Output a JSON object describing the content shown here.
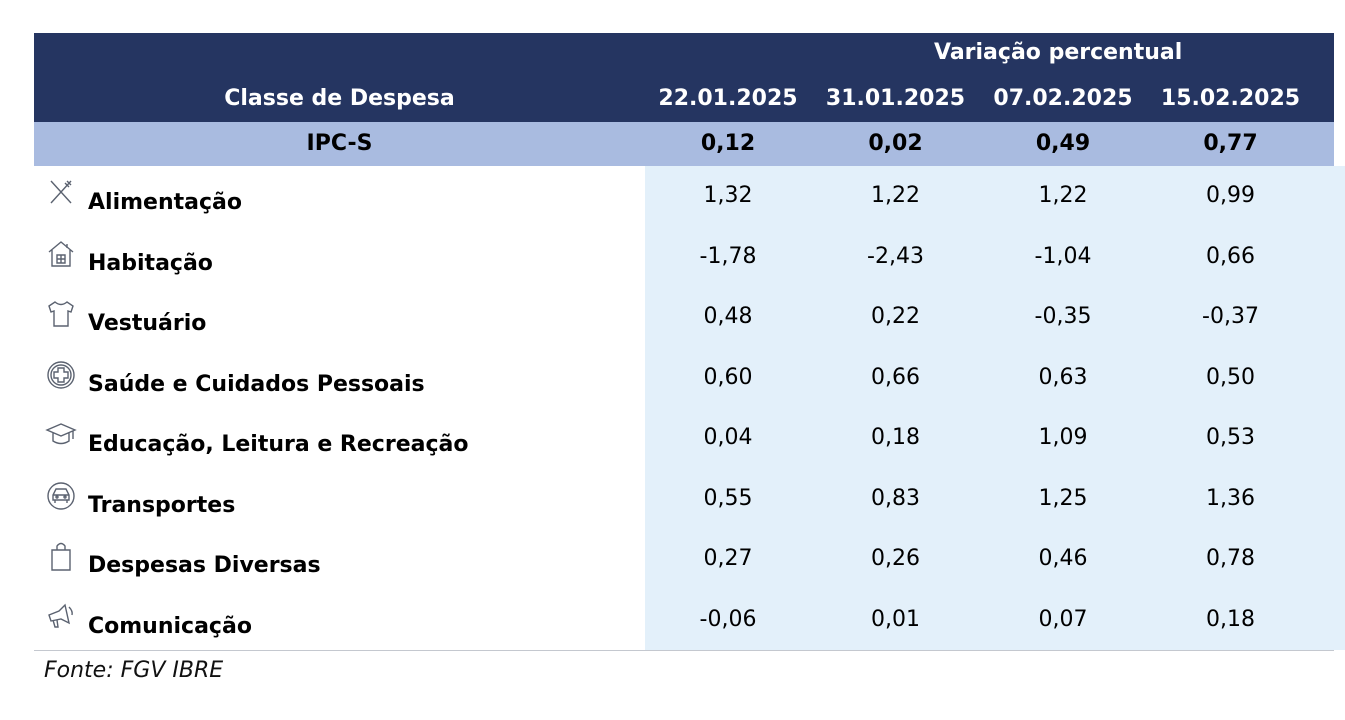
{
  "header": {
    "group": "Variação percentual",
    "first_column": "Classe de Despesa",
    "dates": [
      "22.01.2025",
      "31.01.2025",
      "07.02.2025",
      "15.02.2025"
    ]
  },
  "table": {
    "total": {
      "label": "IPC-S",
      "values": [
        "0,12",
        "0,02",
        "0,49",
        "0,77"
      ]
    },
    "rows": [
      {
        "label": "Alimentação",
        "values": [
          "1,32",
          "1,22",
          "1,22",
          "0,99"
        ]
      },
      {
        "label": "Habitação",
        "values": [
          "-1,78",
          "-2,43",
          "-1,04",
          "0,66"
        ]
      },
      {
        "label": "Vestuário",
        "values": [
          "0,48",
          "0,22",
          "-0,35",
          "-0,37"
        ]
      },
      {
        "label": "Saúde e Cuidados Pessoais",
        "values": [
          "0,60",
          "0,66",
          "0,63",
          "0,50"
        ]
      },
      {
        "label": "Educação, Leitura e Recreação",
        "values": [
          "0,04",
          "0,18",
          "1,09",
          "0,53"
        ]
      },
      {
        "label": "Transportes",
        "values": [
          "0,55",
          "0,83",
          "1,25",
          "1,36"
        ]
      },
      {
        "label": "Despesas Diversas",
        "values": [
          "0,27",
          "0,26",
          "0,46",
          "0,78"
        ]
      },
      {
        "label": "Comunicação",
        "values": [
          "-0,06",
          "0,01",
          "0,07",
          "0,18"
        ]
      }
    ]
  },
  "footer": {
    "source": "Fonte: FGV IBRE"
  }
}
